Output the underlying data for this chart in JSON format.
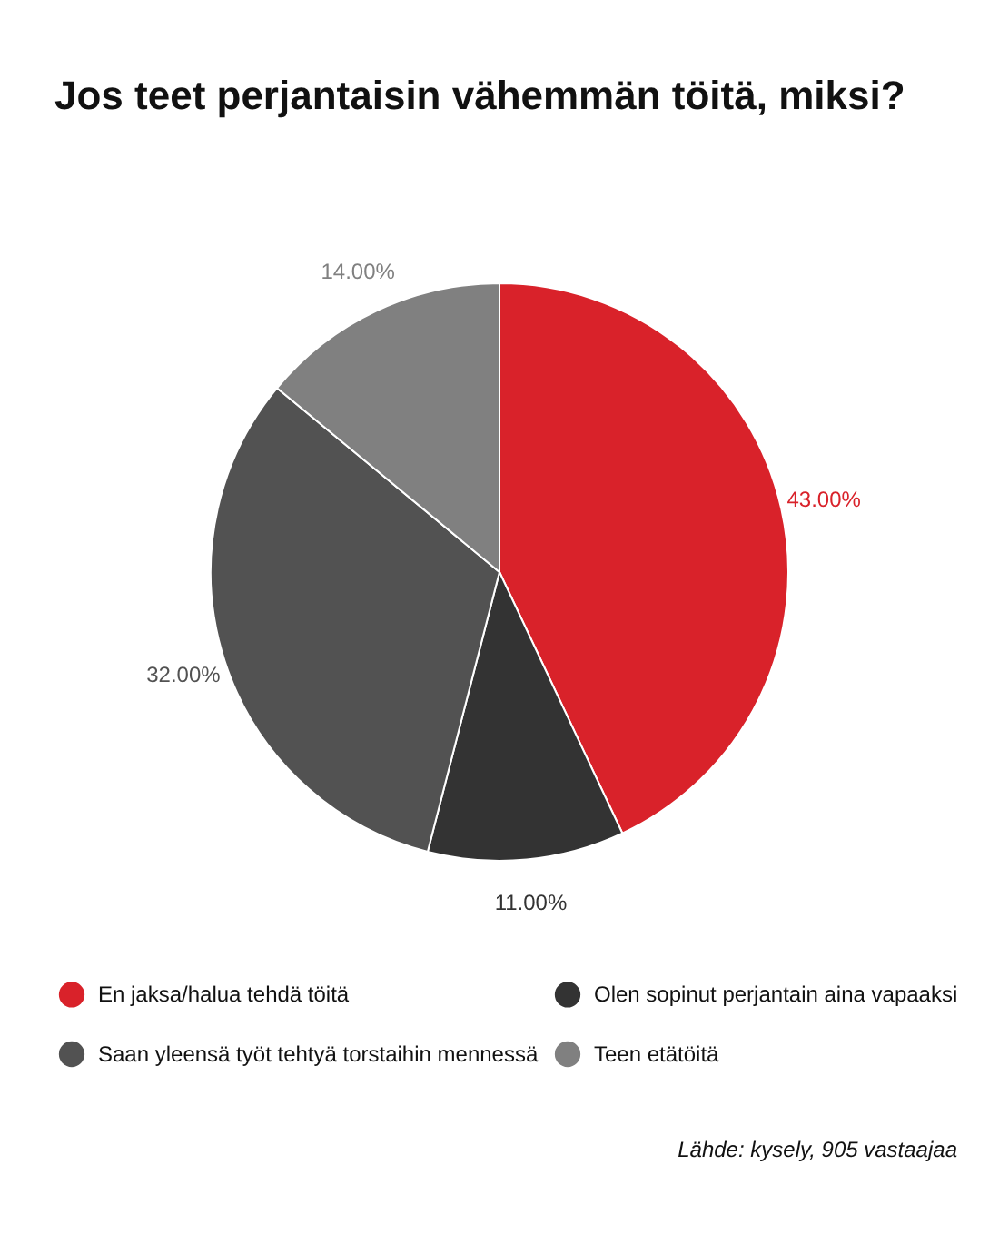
{
  "chart_data": {
    "type": "pie",
    "title": "Jos teet perjantaisin vähemmän töitä, miksi?",
    "categories": [
      "En jaksa/halua tehdä töitä",
      "Olen sopinut perjantain aina vapaaksi",
      "Saan yleensä työt tehtyä torstaihin mennessä",
      "Teen etätöitä"
    ],
    "values": [
      43,
      11,
      32,
      14
    ],
    "colors": [
      "#d9222a",
      "#333333",
      "#525252",
      "#808080"
    ],
    "value_labels": [
      "43.00%",
      "11.00%",
      "32.00%",
      "14.00%"
    ],
    "legend": "bottom",
    "annotations": [
      "Lähde: kysely, 905 vastaajaa"
    ]
  }
}
